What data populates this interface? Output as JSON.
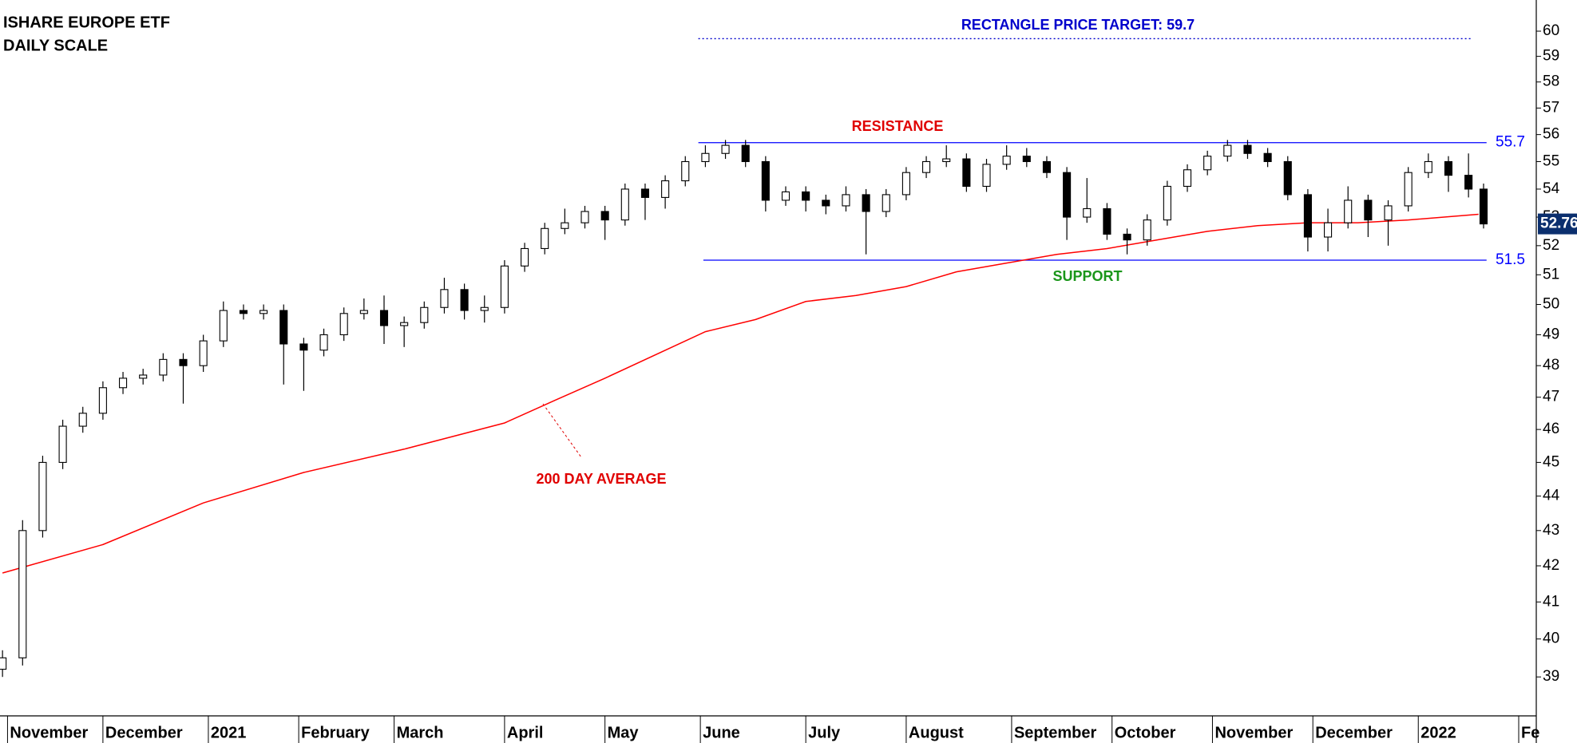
{
  "chart_data": {
    "type": "candlestick",
    "title": "ISHARE EUROPE ETF",
    "subtitle": "DAILY SCALE",
    "log_scale": true,
    "ylim": [
      38.0,
      61.26
    ],
    "yticks": [
      39,
      40,
      41,
      42,
      43,
      44,
      45,
      46,
      47,
      48,
      49,
      50,
      51,
      52,
      53,
      54,
      55,
      56,
      57,
      58,
      59,
      60
    ],
    "xlim": [
      -0.5,
      305.5
    ],
    "xticks": [
      {
        "value": 1,
        "label": "November"
      },
      {
        "value": 20,
        "label": "December"
      },
      {
        "value": 41,
        "label": "2021"
      },
      {
        "value": 59,
        "label": "February"
      },
      {
        "value": 78,
        "label": "March"
      },
      {
        "value": 100,
        "label": "April"
      },
      {
        "value": 120,
        "label": "May"
      },
      {
        "value": 139,
        "label": "June"
      },
      {
        "value": 160,
        "label": "July"
      },
      {
        "value": 180,
        "label": "August"
      },
      {
        "value": 201,
        "label": "September"
      },
      {
        "value": 221,
        "label": "October"
      },
      {
        "value": 241,
        "label": "November"
      },
      {
        "value": 261,
        "label": "December"
      },
      {
        "value": 282,
        "label": "2022"
      },
      {
        "value": 302,
        "label": "Fe"
      }
    ],
    "candles": {
      "x": [
        0,
        4,
        8,
        12,
        16,
        20,
        24,
        28,
        32,
        36,
        40,
        44,
        48,
        52,
        56,
        60,
        64,
        68,
        72,
        76,
        80,
        84,
        88,
        92,
        96,
        100,
        104,
        108,
        112,
        116,
        120,
        124,
        128,
        132,
        136,
        140,
        144,
        148,
        152,
        156,
        160,
        164,
        168,
        172,
        176,
        180,
        184,
        188,
        192,
        196,
        200,
        204,
        208,
        212,
        216,
        220,
        224,
        228,
        232,
        236,
        240,
        244,
        248,
        252,
        256,
        260,
        264,
        268,
        272,
        276,
        280,
        284,
        288,
        292,
        295
      ],
      "open": [
        39.2,
        39.5,
        43,
        45,
        46.1,
        46.5,
        47.3,
        47.6,
        47.7,
        48.2,
        48,
        48.8,
        49.8,
        49.7,
        49.8,
        48.7,
        48.5,
        49,
        49.7,
        49.8,
        49.3,
        49.4,
        49.9,
        50.5,
        49.8,
        49.9,
        51.3,
        51.9,
        52.6,
        52.8,
        53.2,
        52.9,
        54,
        53.7,
        54.3,
        55,
        55.3,
        55.6,
        55,
        53.6,
        53.9,
        53.6,
        53.4,
        53.8,
        53.2,
        53.8,
        54.6,
        55,
        55.1,
        54.1,
        54.9,
        55.2,
        55,
        54.6,
        53,
        53.3,
        52.4,
        52.2,
        52.9,
        54.1,
        54.7,
        55.2,
        55.6,
        55.3,
        55,
        53.8,
        52.3,
        52.8,
        53.6,
        52.9,
        53.4,
        54.6,
        55,
        54.5,
        54
      ],
      "high": [
        39.7,
        43.3,
        45.2,
        46.3,
        46.7,
        47.5,
        47.8,
        47.9,
        48.4,
        48.4,
        49,
        50.1,
        50,
        50,
        50,
        48.9,
        49.2,
        49.9,
        50.2,
        50.3,
        49.6,
        50.1,
        50.9,
        50.7,
        50.3,
        51.5,
        52.1,
        52.8,
        53.3,
        53.4,
        53.4,
        54.2,
        54.2,
        54.5,
        55.2,
        55.6,
        55.8,
        55.8,
        55.2,
        54.1,
        54.1,
        53.8,
        54.1,
        54,
        54,
        54.8,
        55.2,
        55.6,
        55.3,
        55.1,
        55.6,
        55.5,
        55.2,
        54.8,
        54.4,
        53.5,
        52.6,
        53.1,
        54.3,
        54.9,
        55.4,
        55.8,
        55.8,
        55.5,
        55.2,
        54,
        53.3,
        54.1,
        53.8,
        53.6,
        54.8,
        55.3,
        55.2,
        55.3,
        54.2
      ],
      "low": [
        39,
        39.3,
        42.8,
        44.8,
        45.9,
        46.3,
        47.1,
        47.4,
        47.5,
        46.8,
        47.8,
        48.6,
        49.5,
        49.5,
        47.4,
        47.2,
        48.3,
        48.8,
        49.5,
        48.7,
        48.6,
        49.2,
        49.7,
        49.5,
        49.4,
        49.7,
        51.1,
        51.7,
        52.4,
        52.6,
        52.2,
        52.7,
        52.9,
        53.3,
        54.1,
        54.8,
        55.1,
        54.8,
        53.2,
        53.4,
        53.2,
        53.1,
        53.2,
        51.7,
        53,
        53.6,
        54.4,
        54.8,
        53.9,
        53.9,
        54.7,
        54.8,
        54.4,
        52.2,
        52.8,
        52.2,
        51.7,
        52,
        52.7,
        53.9,
        54.5,
        55,
        55.1,
        54.8,
        53.6,
        51.8,
        51.8,
        52.6,
        52.3,
        52,
        53.2,
        54.4,
        53.9,
        53.7,
        52.6
      ],
      "close": [
        39.5,
        43,
        45,
        46.1,
        46.5,
        47.3,
        47.6,
        47.7,
        48.2,
        48,
        48.8,
        49.8,
        49.7,
        49.8,
        48.7,
        48.5,
        49,
        49.7,
        49.8,
        49.3,
        49.4,
        49.9,
        50.5,
        49.8,
        49.9,
        51.3,
        51.9,
        52.6,
        52.8,
        53.2,
        52.9,
        54,
        53.7,
        54.3,
        55,
        55.3,
        55.6,
        55,
        53.6,
        53.9,
        53.6,
        53.4,
        53.8,
        53.2,
        53.8,
        54.6,
        55,
        55.1,
        54.1,
        54.9,
        55.2,
        55,
        54.6,
        53,
        53.3,
        52.4,
        52.2,
        52.9,
        54.1,
        54.7,
        55.2,
        55.6,
        55.3,
        55,
        53.8,
        52.3,
        52.8,
        53.6,
        52.9,
        53.4,
        54.6,
        55,
        54.5,
        54,
        52.76
      ]
    },
    "moving_average": {
      "label": "200 DAY AVERAGE",
      "color": "#ff0000",
      "x": [
        0,
        20,
        40,
        60,
        80,
        100,
        110,
        120,
        140,
        150,
        160,
        170,
        180,
        190,
        200,
        210,
        220,
        230,
        240,
        250,
        260,
        270,
        280,
        294
      ],
      "values": [
        41.8,
        42.6,
        43.8,
        44.7,
        45.4,
        46.2,
        46.9,
        47.6,
        49.1,
        49.5,
        50.1,
        50.3,
        50.6,
        51.1,
        51.4,
        51.7,
        51.9,
        52.2,
        52.5,
        52.7,
        52.8,
        52.8,
        52.9,
        53.1
      ]
    },
    "resistance": {
      "label": "RESISTANCE",
      "value": 55.7,
      "x": [
        138.6,
        295.6
      ],
      "color": "#0000ff"
    },
    "support": {
      "label": "SUPPORT",
      "value": 51.5,
      "x": [
        139.6,
        295.6
      ],
      "color": "#0000ff"
    },
    "target": {
      "label": "RECTANGLE PRICE TARGET: 59.7",
      "value": 59.7,
      "x": [
        138.6,
        292.4
      ],
      "color": "#0000cc"
    }
  }
}
